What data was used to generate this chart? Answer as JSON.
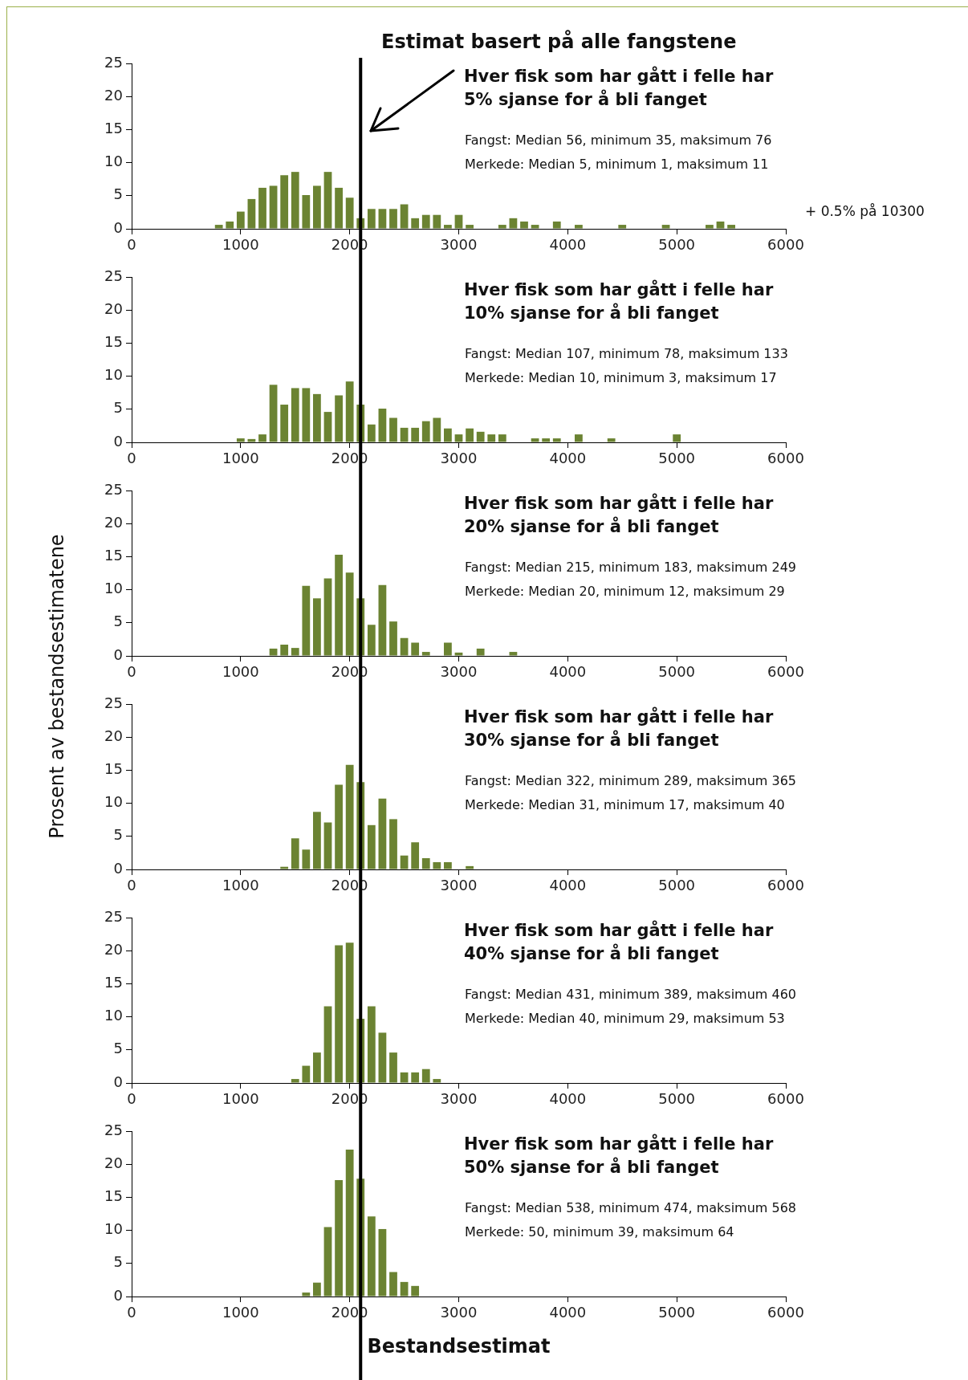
{
  "chart_data": [
    {
      "type": "histogram",
      "title": "Hver fisk som har gått i felle har\n5% sjanse for å bli fanget",
      "annotations": [
        "Fangst: Median 56, minimum 35, maksimum 76",
        "Merkede: Median 5, minimum 1, maksimum 11",
        "+ 0.5% på 10300"
      ],
      "color": "#6b8332",
      "grid": false,
      "bins": [
        750,
        850,
        950,
        1050,
        1150,
        1250,
        1350,
        1450,
        1550,
        1650,
        1750,
        1850,
        1950,
        2050,
        2150,
        2250,
        2350,
        2450,
        2550,
        2650,
        2750,
        2850,
        2950,
        3050,
        3150,
        3250,
        3350,
        3450,
        3550,
        3650,
        3750,
        3850,
        3950,
        4050,
        4150,
        4250,
        4350,
        4450,
        4550,
        4650,
        4750,
        4850,
        4950,
        5050,
        5150,
        5250,
        5350,
        5450,
        5550
      ],
      "values": [
        0.6,
        1.1,
        2.6,
        4.5,
        6.2,
        6.5,
        8.1,
        8.6,
        5.1,
        6.5,
        8.6,
        6.2,
        4.7,
        1.6,
        3.0,
        3.0,
        3.0,
        3.7,
        1.6,
        2.1,
        2.1,
        0.6,
        2.1,
        0.6,
        0,
        0,
        0.6,
        1.6,
        1.1,
        0.6,
        0,
        1.1,
        0,
        0.6,
        0,
        0,
        0,
        0.6,
        0,
        0,
        0,
        0.6,
        0,
        0,
        0,
        0.6,
        1.1,
        0.6
      ],
      "xlim": [
        0,
        6000
      ],
      "xticks": [
        0,
        1000,
        2000,
        3000,
        4000,
        5000,
        6000
      ],
      "ylim": [
        0,
        25
      ],
      "yticks": [
        0,
        5,
        10,
        15,
        20,
        25
      ],
      "ref_lines": [
        {
          "axis": "x",
          "value": 2100,
          "label": "Estimat basert på alle fangstene",
          "color": "#000000"
        }
      ]
    },
    {
      "type": "histogram",
      "title": "Hver fisk som har gått i felle har\n10% sjanse for å bli fanget",
      "annotations": [
        "Fangst: Median 107, minimum 78, maksimum 133",
        "Merkede: Median 10, minimum 3, maksimum 17"
      ],
      "color": "#6b8332",
      "grid": false,
      "bins": [
        950,
        1050,
        1150,
        1250,
        1350,
        1450,
        1550,
        1650,
        1750,
        1850,
        1950,
        2050,
        2150,
        2250,
        2350,
        2450,
        2550,
        2650,
        2750,
        2850,
        2950,
        3050,
        3150,
        3250,
        3350,
        3450,
        3550,
        3650,
        3750,
        3850,
        3950,
        4050,
        4150,
        4250,
        4350,
        4450,
        4550,
        4650,
        4750,
        4850,
        4950,
        5050
      ],
      "values": [
        0.6,
        0.5,
        1.2,
        8.7,
        5.7,
        8.2,
        8.2,
        7.3,
        4.6,
        7.1,
        9.2,
        5.7,
        2.7,
        5.1,
        3.7,
        2.2,
        2.2,
        3.2,
        3.7,
        2.1,
        1.2,
        2.1,
        1.6,
        1.2,
        1.2,
        0,
        0,
        0.6,
        0.6,
        0.6,
        0,
        1.2,
        0,
        0,
        0.6,
        0,
        0,
        0,
        0,
        0,
        1.2
      ],
      "xlim": [
        0,
        6000
      ],
      "xticks": [
        0,
        1000,
        2000,
        3000,
        4000,
        5000,
        6000
      ],
      "ylim": [
        0,
        25
      ],
      "yticks": [
        0,
        5,
        10,
        15,
        20,
        25
      ],
      "ref_lines": [
        {
          "axis": "x",
          "value": 2100,
          "color": "#000000"
        }
      ]
    },
    {
      "type": "histogram",
      "title": "Hver fisk som har gått i felle har\n20% sjanse for å bli fanget",
      "annotations": [
        "Fangst: Median 215, minimum 183, maksimum 249",
        "Merkede: Median 20, minimum 12, maksimum 29"
      ],
      "color": "#6b8332",
      "grid": false,
      "bins": [
        1250,
        1350,
        1450,
        1550,
        1650,
        1750,
        1850,
        1950,
        2050,
        2150,
        2250,
        2350,
        2450,
        2550,
        2650,
        2750,
        2850,
        2950,
        3050,
        3150,
        3250,
        3350,
        3450,
        3550
      ],
      "values": [
        1.1,
        1.7,
        1.2,
        10.6,
        8.7,
        11.7,
        15.3,
        12.6,
        8.7,
        4.7,
        10.7,
        5.2,
        2.7,
        2.0,
        0.6,
        0,
        2.0,
        0.5,
        0,
        1.1,
        0,
        0,
        0.6
      ],
      "xlim": [
        0,
        6000
      ],
      "xticks": [
        0,
        1000,
        2000,
        3000,
        4000,
        5000,
        6000
      ],
      "ylim": [
        0,
        25
      ],
      "yticks": [
        0,
        5,
        10,
        15,
        20,
        25
      ],
      "ref_lines": [
        {
          "axis": "x",
          "value": 2100,
          "color": "#000000"
        }
      ]
    },
    {
      "type": "histogram",
      "title": "Hver fisk som har gått i felle har\n30% sjanse for å bli fanget",
      "annotations": [
        "Fangst: Median 322, minimum 289, maksimum 365",
        "Merkede: Median 31, minimum 17, maksimum 40"
      ],
      "color": "#6b8332",
      "grid": false,
      "ylabel": "Prosent av bestandsestimatene",
      "bins": [
        1350,
        1450,
        1550,
        1650,
        1750,
        1850,
        1950,
        2050,
        2150,
        2250,
        2350,
        2450,
        2550,
        2650,
        2750,
        2850,
        2950,
        3050,
        3150
      ],
      "values": [
        0.4,
        4.7,
        3.0,
        8.7,
        7.1,
        12.8,
        15.8,
        13.2,
        6.7,
        10.7,
        7.6,
        2.1,
        4.1,
        1.7,
        1.1,
        1.1,
        0,
        0.5
      ],
      "xlim": [
        0,
        6000
      ],
      "xticks": [
        0,
        1000,
        2000,
        3000,
        4000,
        5000,
        6000
      ],
      "ylim": [
        0,
        25
      ],
      "yticks": [
        0,
        5,
        10,
        15,
        20,
        25
      ],
      "ref_lines": [
        {
          "axis": "x",
          "value": 2100,
          "color": "#000000"
        }
      ]
    },
    {
      "type": "histogram",
      "title": "Hver fisk som har gått i felle har\n40% sjanse for å bli fanget",
      "annotations": [
        "Fangst: Median 431, minimum 389, maksimum 460",
        "Merkede: Median 40, minimum 29, maksimum 53"
      ],
      "color": "#6b8332",
      "grid": false,
      "bins": [
        1450,
        1550,
        1650,
        1750,
        1850,
        1950,
        2050,
        2150,
        2250,
        2350,
        2450,
        2550,
        2650,
        2750,
        2850
      ],
      "values": [
        0.6,
        2.6,
        4.6,
        11.6,
        20.8,
        21.2,
        9.7,
        11.6,
        7.6,
        4.6,
        1.6,
        1.6,
        2.1,
        0.6
      ],
      "xlim": [
        0,
        6000
      ],
      "xticks": [
        0,
        1000,
        2000,
        3000,
        4000,
        5000,
        6000
      ],
      "ylim": [
        0,
        25
      ],
      "yticks": [
        0,
        5,
        10,
        15,
        20,
        25
      ],
      "ref_lines": [
        {
          "axis": "x",
          "value": 2100,
          "color": "#000000"
        }
      ]
    },
    {
      "type": "histogram",
      "title": "Hver fisk som har gått i felle har\n50% sjanse for å bli fanget",
      "annotations": [
        "Fangst: Median 538, minimum 474, maksimum 568",
        "Merkede: 50, minimum 39, maksimum 64"
      ],
      "color": "#6b8332",
      "grid": false,
      "xlabel": "Bestandsestimat",
      "bins": [
        1550,
        1650,
        1750,
        1850,
        1950,
        2050,
        2150,
        2250,
        2350,
        2450,
        2550,
        2650
      ],
      "values": [
        0.6,
        2.1,
        10.5,
        17.6,
        22.2,
        17.8,
        12.1,
        10.2,
        3.7,
        2.2,
        1.6
      ],
      "xlim": [
        0,
        6000
      ],
      "xticks": [
        0,
        1000,
        2000,
        3000,
        4000,
        5000,
        6000
      ],
      "ylim": [
        0,
        25
      ],
      "yticks": [
        0,
        5,
        10,
        15,
        20,
        25
      ],
      "ref_lines": [
        {
          "axis": "x",
          "value": 2100,
          "color": "#000000"
        }
      ]
    }
  ]
}
